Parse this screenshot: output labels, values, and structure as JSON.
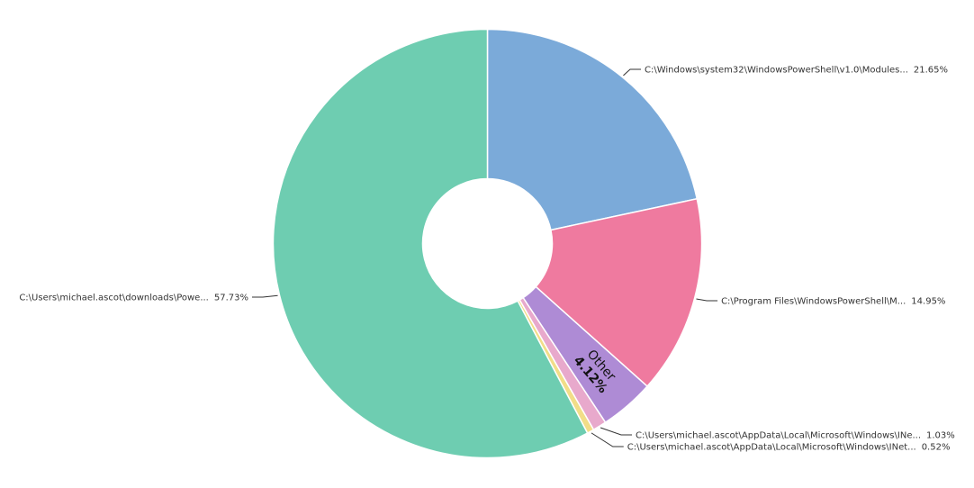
{
  "chart_data": {
    "type": "pie",
    "variant": "donut",
    "title": "",
    "slices": [
      {
        "label": "C:\\Windows\\system32\\WindowsPowerShell\\v1.0\\Modules...",
        "percent_label": "21.65%",
        "value": 21.65,
        "color": "#7BAAD9"
      },
      {
        "label": "C:\\Program Files\\WindowsPowerShell\\M...",
        "percent_label": "14.95%",
        "value": 14.95,
        "color": "#EF7A9F"
      },
      {
        "label": "Other",
        "percent_label": "4.12%",
        "value": 4.12,
        "color": "#AE8BD5"
      },
      {
        "label": "C:\\Users\\michael.ascot\\AppData\\Local\\Microsoft\\Windows\\INe...",
        "percent_label": "1.03%",
        "value": 1.03,
        "color": "#E8A9CC"
      },
      {
        "label": "C:\\Users\\michael.ascot\\AppData\\Local\\Microsoft\\Windows\\INet...",
        "percent_label": "0.52%",
        "value": 0.52,
        "color": "#F2DD88"
      },
      {
        "label": "C:\\Users\\michael.ascot\\downloads\\Powe...",
        "percent_label": "57.73%",
        "value": 57.73,
        "color": "#6ECDB1"
      }
    ],
    "legend": "none",
    "labels": "outside with leader lines; Other labeled inside"
  }
}
